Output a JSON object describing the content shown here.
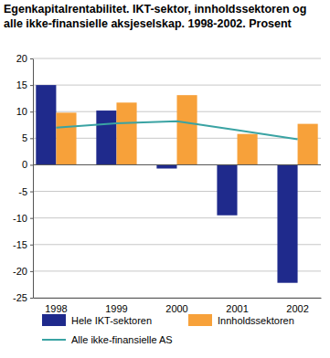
{
  "chart_data": {
    "type": "bar",
    "title": "Egenkapitalrentabilitet. IKT-sektor, innholdssektoren og alle ikke-finansielle aksjeselskap. 1998-2002. Prosent",
    "categories": [
      "1998",
      "1999",
      "2000",
      "2001",
      "2002"
    ],
    "series": [
      {
        "name": "Hele IKT-sektoren",
        "type": "bar",
        "color": "#1f2a8c",
        "values": [
          15.0,
          10.2,
          -0.7,
          -9.5,
          -22.2
        ]
      },
      {
        "name": "Innholdssektoren",
        "type": "bar",
        "color": "#f7a13a",
        "values": [
          9.8,
          11.7,
          13.1,
          5.8,
          7.7
        ]
      },
      {
        "name": "Alle ikke-finansielle AS",
        "type": "line",
        "color": "#3aa3a3",
        "values": [
          7.0,
          7.8,
          8.2,
          6.5,
          4.8
        ]
      }
    ],
    "ylim": [
      -25,
      20
    ],
    "yticks": [
      -25,
      -20,
      -15,
      -10,
      -5,
      0,
      5,
      10,
      15,
      20
    ],
    "grid": true,
    "legend": "bottom"
  }
}
